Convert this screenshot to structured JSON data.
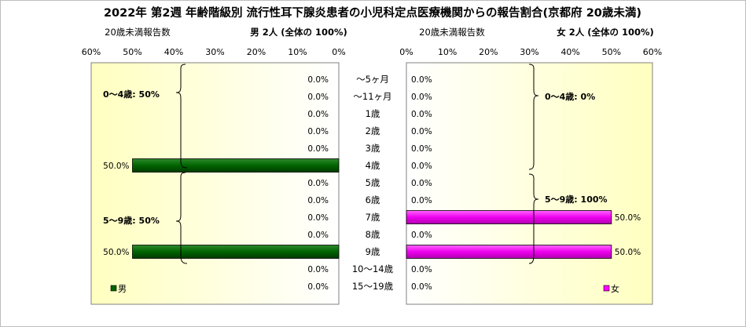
{
  "title": "2022年 第2週 年齢階級別 流行性耳下腺炎患者の小児科定点医療機関からの報告割合(京都府 20歳未満)",
  "left_panel": {
    "caption": "20歳未満報告数",
    "total_label": "男 2人 (全体の 100%)",
    "legend": "男",
    "brace_labels": [
      "0～4歳: 50%",
      "5～9歳: 50%"
    ]
  },
  "right_panel": {
    "caption": "20歳未満報告数",
    "total_label": "女 2人 (全体の 100%)",
    "legend": "女",
    "brace_labels": [
      "0～4歳: 0%",
      "5～9歳: 100%"
    ]
  },
  "colors": {
    "male": "#006400",
    "female": "#ff00ff",
    "plot_bg_start": "#ffffff",
    "plot_bg_end": "#ffffc0"
  },
  "chart_data": [
    {
      "type": "bar",
      "orientation": "horizontal",
      "direction": "right-to-left",
      "categories": [
        "～5ヶ月",
        "～11ヶ月",
        "1歳",
        "2歳",
        "3歳",
        "4歳",
        "5歳",
        "6歳",
        "7歳",
        "8歳",
        "9歳",
        "10～14歳",
        "15～19歳"
      ],
      "series": [
        {
          "name": "男",
          "values": [
            0,
            0,
            0,
            0,
            0,
            50,
            0,
            0,
            0,
            0,
            50,
            0,
            0
          ]
        }
      ],
      "data_labels": [
        "0.0%",
        "0.0%",
        "0.0%",
        "0.0%",
        "0.0%",
        "50.0%",
        "0.0%",
        "0.0%",
        "0.0%",
        "0.0%",
        "50.0%",
        "0.0%",
        "0.0%"
      ],
      "xticks": [
        "60%",
        "50%",
        "40%",
        "30%",
        "20%",
        "10%",
        "0%"
      ],
      "xlim": [
        0,
        60
      ],
      "legend": "bottom-left"
    },
    {
      "type": "bar",
      "orientation": "horizontal",
      "direction": "left-to-right",
      "categories": [
        "～5ヶ月",
        "～11ヶ月",
        "1歳",
        "2歳",
        "3歳",
        "4歳",
        "5歳",
        "6歳",
        "7歳",
        "8歳",
        "9歳",
        "10～14歳",
        "15～19歳"
      ],
      "series": [
        {
          "name": "女",
          "values": [
            0,
            0,
            0,
            0,
            0,
            0,
            0,
            0,
            50,
            0,
            50,
            0,
            0
          ]
        }
      ],
      "data_labels": [
        "0.0%",
        "0.0%",
        "0.0%",
        "0.0%",
        "0.0%",
        "0.0%",
        "0.0%",
        "0.0%",
        "50.0%",
        "0.0%",
        "50.0%",
        "0.0%",
        "0.0%"
      ],
      "xticks": [
        "0%",
        "10%",
        "20%",
        "30%",
        "40%",
        "50%",
        "60%"
      ],
      "xlim": [
        0,
        60
      ],
      "legend": "bottom-right"
    }
  ]
}
